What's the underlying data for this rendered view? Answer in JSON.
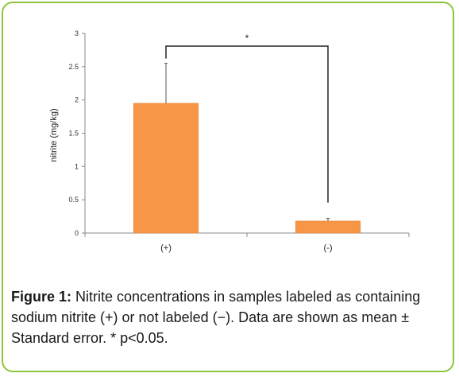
{
  "chart_data": {
    "type": "bar",
    "categories": [
      "(+)",
      "(-)"
    ],
    "values": [
      1.95,
      0.18
    ],
    "errors": [
      0.6,
      0.04
    ],
    "ylabel": "nitrite (mg/kg)",
    "xlabel": "",
    "ylim": [
      0,
      3
    ],
    "yticks": [
      "0",
      "0.5",
      "1",
      "1.5",
      "2",
      "2.5",
      "3"
    ],
    "yticks_values": [
      0,
      0.5,
      1,
      1.5,
      2,
      2.5,
      3
    ],
    "grid": false,
    "bar_color": "#f79646",
    "significance": "*"
  },
  "caption": {
    "label": "Figure 1:",
    "text": " Nitrite concentrations in samples labeled as containing sodium nitrite (+) or not labeled (−). Data are shown as mean ± Standard error. * p<0.05."
  },
  "colors": {
    "border": "#8dc63f",
    "bar": "#f79646"
  }
}
